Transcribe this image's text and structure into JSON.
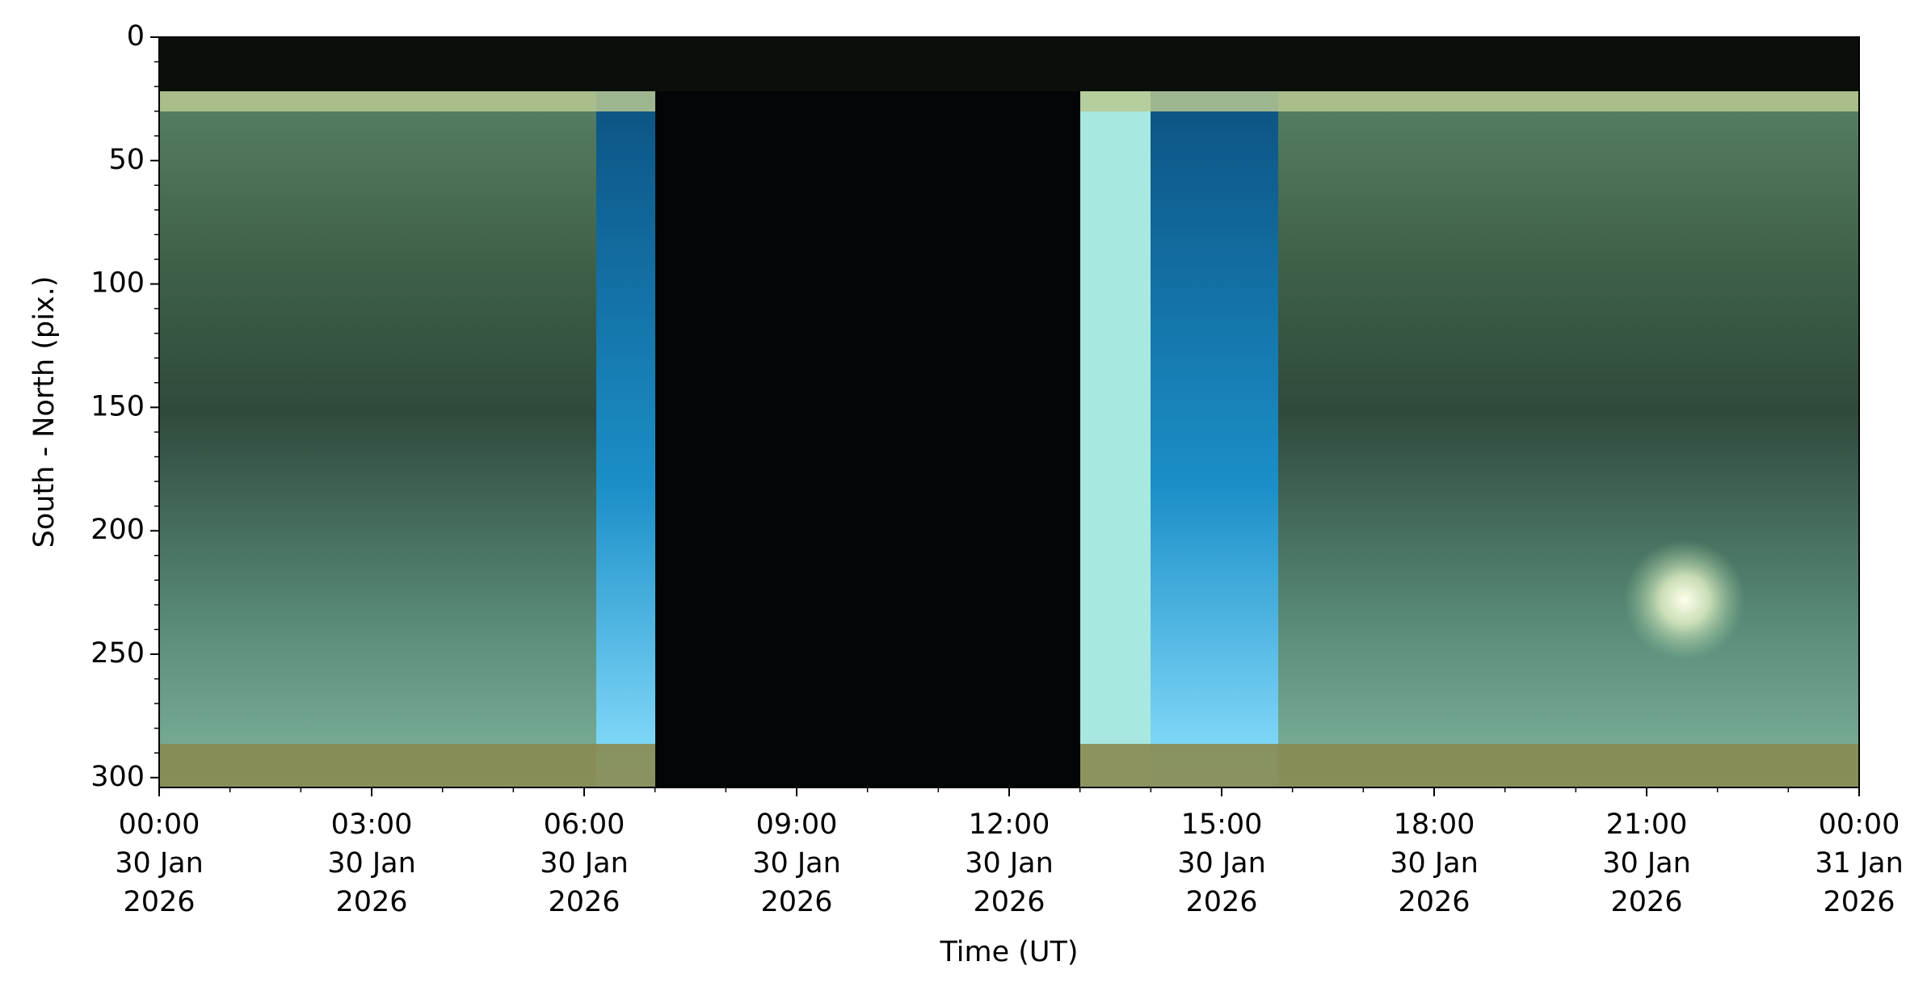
{
  "chart_data": {
    "type": "keogram",
    "xlabel": "Time (UT)",
    "ylabel": "South - North (pix.)",
    "xlim": [
      0,
      24
    ],
    "xticks": [
      {
        "value": 0,
        "label": "00:00\n30 Jan\n2026"
      },
      {
        "value": 3,
        "label": "03:00\n30 Jan\n2026"
      },
      {
        "value": 6,
        "label": "06:00\n30 Jan\n2026"
      },
      {
        "value": 9,
        "label": "09:00\n30 Jan\n2026"
      },
      {
        "value": 12,
        "label": "12:00\n30 Jan\n2026"
      },
      {
        "value": 15,
        "label": "15:00\n30 Jan\n2026"
      },
      {
        "value": 18,
        "label": "18:00\n30 Jan\n2026"
      },
      {
        "value": 21,
        "label": "21:00\n30 Jan\n2026"
      },
      {
        "value": 24,
        "label": "00:00\n31 Jan\n2026"
      }
    ],
    "xminorticks": [
      1,
      2,
      4,
      5,
      7,
      8,
      10,
      11,
      13,
      14,
      16,
      17,
      19,
      20,
      22,
      23
    ],
    "ylim": [
      304,
      0
    ],
    "yticks": [
      0,
      50,
      100,
      150,
      200,
      250,
      300
    ],
    "yminorticks": [
      10,
      20,
      30,
      40,
      60,
      70,
      80,
      90,
      110,
      120,
      130,
      140,
      160,
      170,
      180,
      190,
      210,
      220,
      230,
      240,
      260,
      270,
      280,
      290
    ]
  }
}
